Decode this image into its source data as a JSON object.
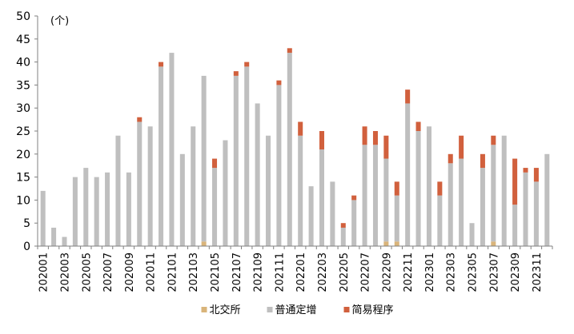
{
  "chart_data": {
    "type": "bar",
    "stacked": true,
    "unit_label": "(个)",
    "ylim": [
      0,
      50
    ],
    "y_ticks": [
      0,
      5,
      10,
      15,
      20,
      25,
      30,
      35,
      40,
      45,
      50
    ],
    "grid": false,
    "legend_position": "bottom",
    "categories": [
      "202001",
      "202002",
      "202003",
      "202004",
      "202005",
      "202006",
      "202007",
      "202008",
      "202009",
      "202010",
      "202011",
      "202012",
      "202101",
      "202102",
      "202103",
      "202104",
      "202105",
      "202106",
      "202107",
      "202108",
      "202109",
      "202110",
      "202111",
      "202112",
      "202201",
      "202202",
      "202203",
      "202204",
      "202205",
      "202206",
      "202207",
      "202208",
      "202209",
      "202210",
      "202211",
      "202212",
      "202301",
      "202302",
      "202303",
      "202304",
      "202305",
      "202306",
      "202307",
      "202308",
      "202309",
      "202310",
      "202311",
      "202312"
    ],
    "x_tick_labels": [
      "202001",
      "202003",
      "202005",
      "202007",
      "202009",
      "202011",
      "202101",
      "202103",
      "202105",
      "202107",
      "202109",
      "202111",
      "202201",
      "202203",
      "202205",
      "202207",
      "202209",
      "202211",
      "202301",
      "202303",
      "202305",
      "202307",
      "202309",
      "202311"
    ],
    "series": [
      {
        "name": "北交所",
        "color": "#d9b47a",
        "values": [
          0,
          0,
          0,
          0,
          0,
          0,
          0,
          0,
          0,
          0,
          0,
          0,
          0,
          0,
          0,
          1,
          0,
          0,
          0,
          0,
          0,
          0,
          0,
          0,
          0,
          0,
          0,
          0,
          0,
          0,
          0,
          0,
          1,
          1,
          0,
          0,
          0,
          0,
          0,
          0,
          0,
          0,
          1,
          0,
          0,
          0,
          0,
          0
        ]
      },
      {
        "name": "普通定增",
        "color": "#bfbfbf",
        "values": [
          12,
          4,
          2,
          15,
          17,
          15,
          16,
          24,
          16,
          27,
          26,
          39,
          42,
          20,
          26,
          36,
          17,
          23,
          37,
          39,
          31,
          24,
          35,
          42,
          24,
          13,
          21,
          14,
          4,
          10,
          22,
          22,
          18,
          10,
          31,
          25,
          26,
          11,
          18,
          19,
          5,
          17,
          21,
          24,
          9,
          16,
          14,
          20
        ]
      },
      {
        "name": "简易程序",
        "color": "#d1603d",
        "values": [
          0,
          0,
          0,
          0,
          0,
          0,
          0,
          0,
          0,
          1,
          0,
          1,
          0,
          0,
          0,
          0,
          2,
          0,
          1,
          1,
          0,
          0,
          1,
          1,
          3,
          0,
          4,
          0,
          1,
          1,
          4,
          3,
          5,
          3,
          3,
          2,
          0,
          3,
          2,
          5,
          0,
          3,
          2,
          0,
          10,
          1,
          3,
          0
        ]
      }
    ]
  }
}
